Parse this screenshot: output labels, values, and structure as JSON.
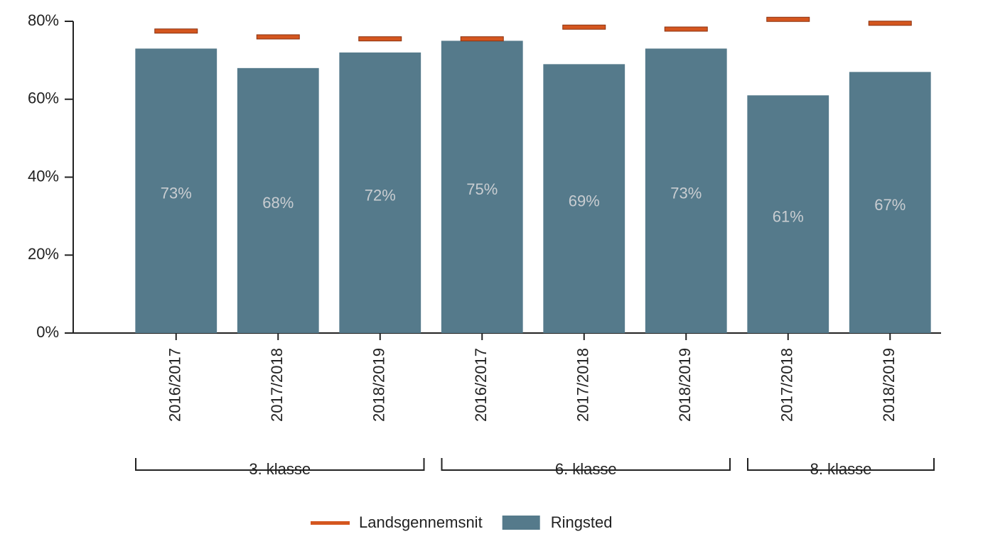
{
  "chart_data": {
    "type": "bar",
    "groups": [
      {
        "name": "3. klasse",
        "categories": [
          "2016/2017",
          "2017/2018",
          "2018/2019"
        ]
      },
      {
        "name": "6. klasse",
        "categories": [
          "2016/2017",
          "2017/2018",
          "2018/2019"
        ]
      },
      {
        "name": "8. klasse",
        "categories": [
          "2017/2018",
          "2018/2019"
        ]
      }
    ],
    "series": [
      {
        "name": "Landsgennemsnit",
        "type": "marker",
        "color": "#d4561f",
        "values": [
          77.5,
          76,
          75.5,
          75.5,
          78.5,
          78,
          80.5,
          79.5
        ]
      },
      {
        "name": "Ringsted",
        "type": "bar",
        "color": "#557a8b",
        "values": [
          73,
          68,
          72,
          75,
          69,
          73,
          61,
          67
        ],
        "value_labels": [
          "73%",
          "68%",
          "72%",
          "75%",
          "69%",
          "73%",
          "61%",
          "67%"
        ]
      }
    ],
    "ylim": [
      0,
      80
    ],
    "yticks": [
      {
        "value": 0,
        "label": "0%"
      },
      {
        "value": 20,
        "label": "20%"
      },
      {
        "value": 40,
        "label": "40%"
      },
      {
        "value": 60,
        "label": "60%"
      },
      {
        "value": 80,
        "label": "80%"
      }
    ]
  }
}
